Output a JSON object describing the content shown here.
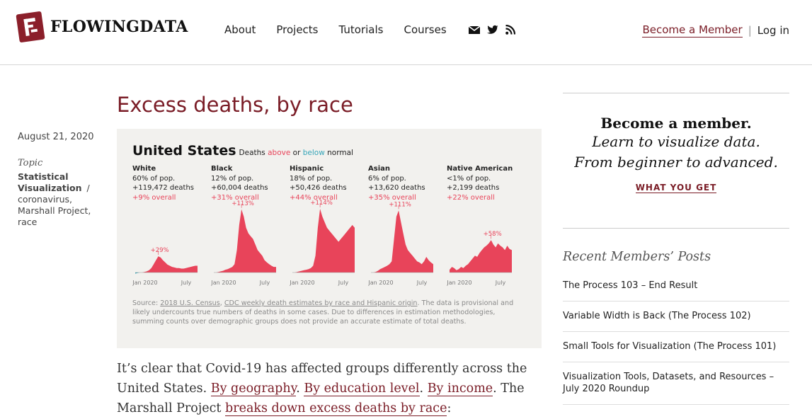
{
  "site": {
    "logo_text": "FLOWINGDATA",
    "nav": [
      "About",
      "Projects",
      "Tutorials",
      "Courses"
    ],
    "icons": [
      "mail-icon",
      "twitter-icon",
      "rss-icon"
    ],
    "become_member": "Become a Member",
    "separator": "|",
    "login": "Log in"
  },
  "post": {
    "date": "August 21, 2020",
    "topic_label": "Topic",
    "topic_primary": "Statistical Visualization",
    "tag_separator": "/",
    "tags": [
      "coronavirus,",
      "Marshall Project,",
      "race"
    ],
    "title": "Excess deaths, by race"
  },
  "figure": {
    "heading": "United States",
    "subheading_pre": "Deaths",
    "subheading_above": "above",
    "subheading_or": "or",
    "subheading_below": "below",
    "subheading_post": "normal",
    "colors": {
      "above": "#e8445a",
      "below": "#35a5b8"
    },
    "source_label": "Source:",
    "source_link1": "2018 U.S. Census",
    "source_comma": ",",
    "source_link2": "CDC weekly death estimates by race and Hispanic origin",
    "source_rest": ". The data is provisional and likely undercounts true numbers of deaths in some cases. Due to differences in estimation methodologies, summing counts over demographic groups does not provide an accurate estimate of total deaths."
  },
  "chart_data": {
    "type": "area",
    "x_tick_labels": [
      "Jan 2020",
      "July"
    ],
    "series": [
      {
        "name": "White",
        "pop": "60% of pop.",
        "deaths": "+119,472 deaths",
        "overall": "+9% overall",
        "peak_label": "+29%",
        "values": [
          -2,
          -1,
          0,
          0,
          1,
          2,
          4,
          8,
          15,
          22,
          29,
          27,
          22,
          18,
          14,
          12,
          10,
          9,
          8,
          8,
          7,
          7,
          8,
          9,
          10,
          11,
          12,
          12
        ]
      },
      {
        "name": "Black",
        "pop": "12% of pop.",
        "deaths": "+60,004 deaths",
        "overall": "+31% overall",
        "peak_label": "+113%",
        "values": [
          0,
          0,
          1,
          2,
          3,
          5,
          6,
          8,
          10,
          15,
          40,
          85,
          113,
          100,
          80,
          70,
          65,
          60,
          50,
          40,
          35,
          30,
          22,
          18,
          15,
          12,
          10,
          10
        ]
      },
      {
        "name": "Hispanic",
        "pop": "18% of pop.",
        "deaths": "+50,426 deaths",
        "overall": "+44% overall",
        "peak_label": "+114%",
        "values": [
          0,
          0,
          1,
          2,
          3,
          4,
          5,
          6,
          8,
          12,
          30,
          80,
          114,
          100,
          90,
          80,
          75,
          70,
          65,
          60,
          55,
          60,
          65,
          70,
          75,
          80,
          85,
          80
        ]
      },
      {
        "name": "Asian",
        "pop": "6% of pop.",
        "deaths": "+13,620 deaths",
        "overall": "+35% overall",
        "peak_label": "+111%",
        "values": [
          0,
          0,
          1,
          3,
          6,
          8,
          10,
          12,
          15,
          20,
          60,
          100,
          111,
          90,
          70,
          50,
          40,
          35,
          30,
          25,
          20,
          18,
          15,
          20,
          28,
          22,
          18,
          15
        ]
      },
      {
        "name": "Native American",
        "pop": "<1% of pop.",
        "deaths": "+2,199 deaths",
        "overall": "+22% overall",
        "peak_label": "+58%",
        "values": [
          5,
          10,
          8,
          4,
          6,
          10,
          8,
          12,
          15,
          20,
          25,
          30,
          28,
          35,
          40,
          45,
          48,
          52,
          58,
          50,
          45,
          52,
          48,
          45,
          40,
          48,
          42,
          40
        ]
      }
    ]
  },
  "article": {
    "p1_a": "It’s clear that Covid-19 has affected groups differently across the United States.",
    "link1": "By geography",
    "dot1": ".",
    "link2": "By education level",
    "dot2": ".",
    "link3": "By income",
    "p1_b": ". The Marshall Project",
    "link4": "breaks down excess deaths by race",
    "p1_c": ":"
  },
  "sidebar": {
    "promo_heading": "Become a member.",
    "promo_line1": "Learn to visualize data.",
    "promo_line2": "From beginner to advanced.",
    "promo_cta": "WHAT YOU GET",
    "recent_heading": "Recent Members’ Posts",
    "recent": [
      "The Process 103 – End Result",
      "Variable Width is Back (The Process 102)",
      "Small Tools for Visualization (The Process 101)",
      "Visualization Tools, Datasets, and Resources – July 2020 Roundup"
    ]
  }
}
